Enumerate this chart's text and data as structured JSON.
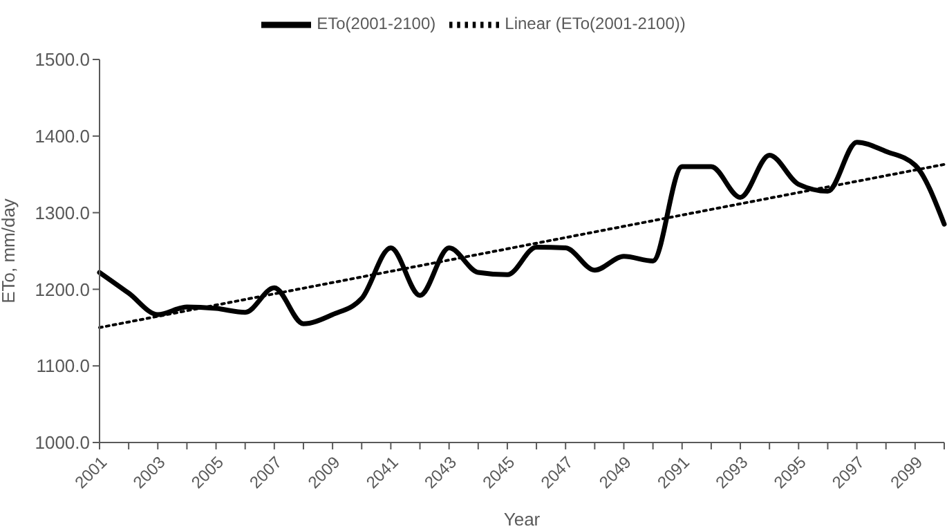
{
  "chart_data": {
    "type": "line",
    "xlabel": "Year",
    "ylabel": "ETo, mm/day",
    "categories": [
      "2001",
      null,
      "2003",
      null,
      "2005",
      null,
      "2007",
      null,
      "2009",
      null,
      "2041",
      null,
      "2043",
      null,
      "2045",
      null,
      "2047",
      null,
      "2049",
      null,
      "2091",
      null,
      "2093",
      null,
      "2095",
      null,
      "2097",
      null,
      "2099",
      null
    ],
    "series": [
      {
        "name": "ETo(2001-2100)",
        "color": "#000000",
        "line_style": "solid",
        "values": [
          1222,
          1195,
          1167,
          1177,
          1175,
          1170,
          1202,
          1155,
          1167,
          1188,
          1254,
          1192,
          1254,
          1222,
          1219,
          1255,
          1254,
          1225,
          1243,
          1237,
          1360,
          1360,
          1320,
          1375,
          1337,
          1328,
          1392,
          1380,
          1362,
          1285
        ]
      },
      {
        "name": "Linear (ETo(2001-2100))",
        "type": "line",
        "color": "#000000",
        "line_style": "dotted",
        "values": [
          1150,
          null,
          null,
          null,
          null,
          null,
          null,
          null,
          null,
          null,
          null,
          null,
          null,
          null,
          null,
          null,
          null,
          null,
          null,
          null,
          null,
          null,
          null,
          null,
          null,
          null,
          null,
          null,
          null,
          1363
        ]
      }
    ],
    "ylim": [
      1000,
      1500
    ],
    "yticks": [
      {
        "value": 1000,
        "label": "1000.0"
      },
      {
        "value": 1100,
        "label": "1100.0"
      },
      {
        "value": 1200,
        "label": "1200.0"
      },
      {
        "value": 1300,
        "label": "1300.0"
      },
      {
        "value": 1400,
        "label": "1400.0"
      },
      {
        "value": 1500,
        "label": "1500.0"
      }
    ],
    "grid": false,
    "legend": "top",
    "marker": "none"
  }
}
